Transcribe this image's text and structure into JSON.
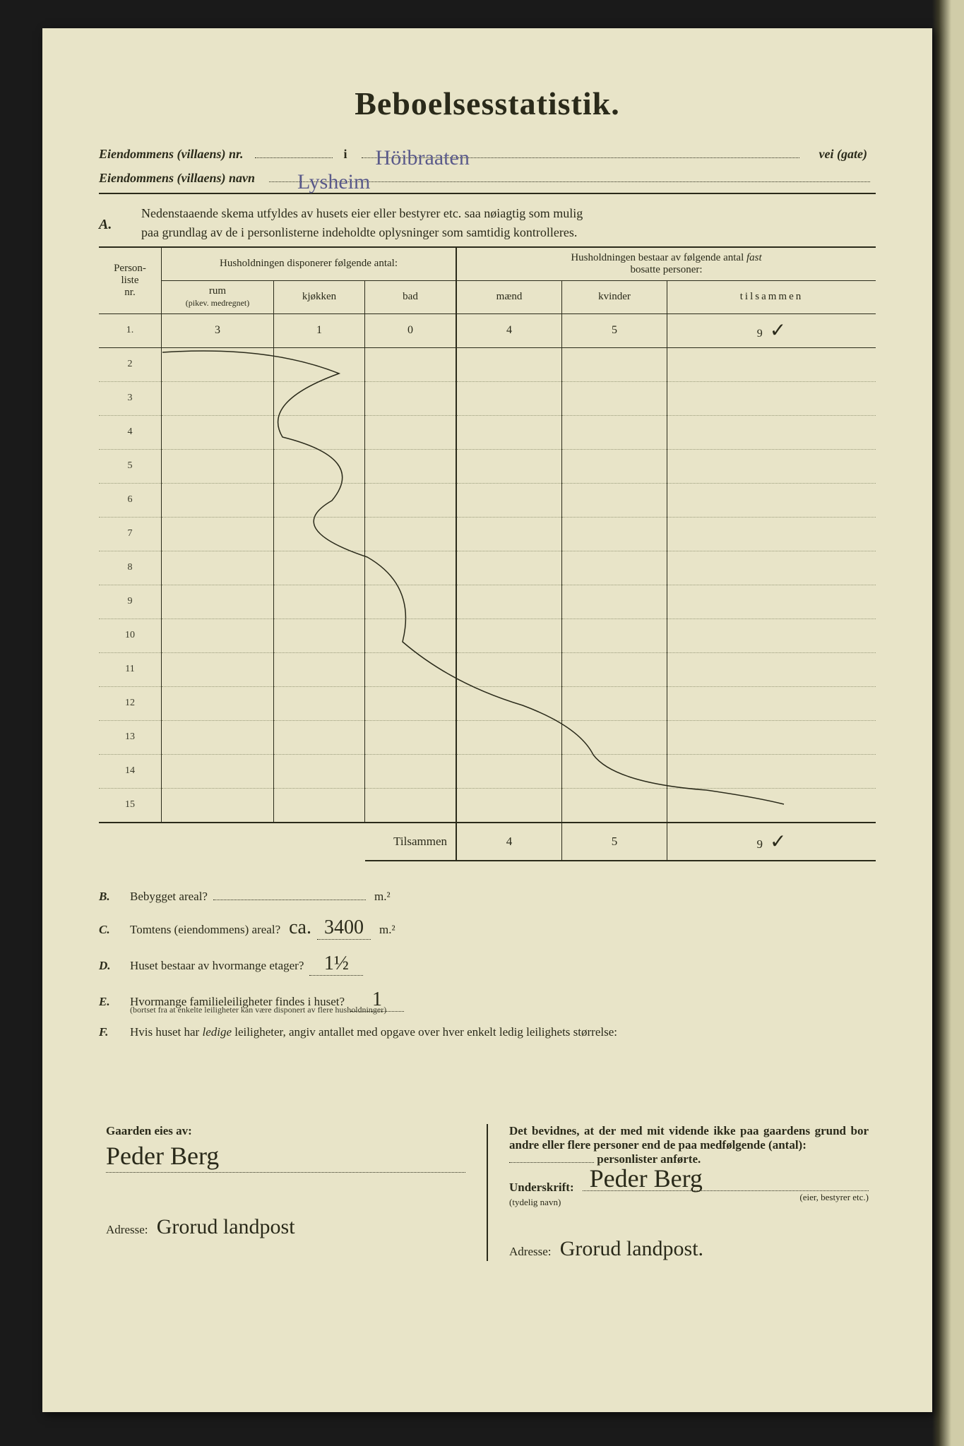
{
  "title": "Beboelsesstatistik.",
  "header": {
    "property_nr_label": "Eiendommens (villaens) nr.",
    "i_label": "i",
    "street_value": "Höibraaten",
    "vei_gate": "vei (gate)",
    "property_name_label": "Eiendommens (villaens) navn",
    "property_name_value": "Lysheim"
  },
  "section_a": {
    "label": "A.",
    "text1": "Nedenstaaende skema utfyldes av husets eier eller bestyrer etc. saa nøiagtig som mulig",
    "text2": "paa grundlag av de i personlisterne indeholdte oplysninger som samtidig kontrolleres."
  },
  "table": {
    "col_personliste": "Person-\nliste\nnr.",
    "group1": "Husholdningen disponerer følgende antal:",
    "group2": "Husholdningen bestaar av følgende antal fast bosatte personer:",
    "col_rum": "rum",
    "col_rum_sub": "(pikev. medregnet)",
    "col_kjokken": "kjøkken",
    "col_bad": "bad",
    "col_maend": "mænd",
    "col_kvinder": "kvinder",
    "col_tilsammen": "tilsammen",
    "rows": [
      {
        "nr": "1.",
        "rum": "3",
        "kjokken": "1",
        "bad": "0",
        "maend": "4",
        "kvinder": "5",
        "tilsammen": "9",
        "check": "✓"
      },
      {
        "nr": "2"
      },
      {
        "nr": "3"
      },
      {
        "nr": "4"
      },
      {
        "nr": "5"
      },
      {
        "nr": "6"
      },
      {
        "nr": "7"
      },
      {
        "nr": "8"
      },
      {
        "nr": "9"
      },
      {
        "nr": "10"
      },
      {
        "nr": "11"
      },
      {
        "nr": "12"
      },
      {
        "nr": "13"
      },
      {
        "nr": "14"
      },
      {
        "nr": "15"
      }
    ],
    "sum_label": "Tilsammen",
    "sum": {
      "maend": "4",
      "kvinder": "5",
      "tilsammen": "9",
      "check": "✓"
    }
  },
  "questions": {
    "B": {
      "label": "B.",
      "text": "Bebygget areal?",
      "value": "",
      "unit": "m.²"
    },
    "C": {
      "label": "C.",
      "text": "Tomtens (eiendommens) areal?",
      "prefix": "ca.",
      "value": "3400",
      "unit": "m.²"
    },
    "D": {
      "label": "D.",
      "text": "Huset bestaar av hvormange etager?",
      "value": "1½"
    },
    "E": {
      "label": "E.",
      "text": "Hvormange familieleiligheter findes i huset?",
      "value": "1",
      "sub": "(bortset fra at enkelte leiligheter kan være disponert av flere husholdninger)"
    },
    "F": {
      "label": "F.",
      "text": "Hvis huset har ledige leiligheter, angiv antallet med opgave over hver enkelt ledig leilighets størrelse:"
    }
  },
  "footer": {
    "left": {
      "owner_label": "Gaarden eies av:",
      "owner_sig": "Peder Berg",
      "adresse_label": "Adresse:",
      "adresse_value": "Grorud landpost"
    },
    "right": {
      "attest_text": "Det bevidnes, at der med mit vidende ikke paa gaardens grund bor andre eller flere personer end de paa medfølgende (antal):",
      "attest_suffix": "personlister anførte.",
      "underskrift_label": "Underskrift:",
      "underskrift_sub": "(tydelig navn)",
      "underskrift_role": "(eier, bestyrer etc.)",
      "sig": "Peder Berg",
      "adresse_label": "Adresse:",
      "adresse_value": "Grorud landpost."
    }
  },
  "colors": {
    "paper": "#e8e4c8",
    "ink": "#2a2a1a",
    "handwriting_blue": "#5a5a8a",
    "background": "#1a1a1a"
  }
}
